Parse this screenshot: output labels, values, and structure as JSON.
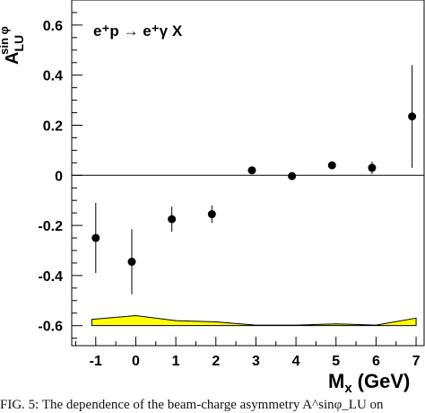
{
  "chart_data": {
    "type": "scatter",
    "ylabel_main": "A",
    "ylabel_sup": "sin φ",
    "ylabel_sub": "LU",
    "annotation": "e⁺p → e⁺γ X",
    "xlabel": "M",
    "xlabel_sub": "x",
    "xlabel_unit": "(GeV)",
    "xlim": [
      -1.6,
      7.2
    ],
    "ylim": [
      -0.68,
      0.7
    ],
    "x_ticks": [
      -1,
      0,
      1,
      2,
      3,
      4,
      5,
      6,
      7
    ],
    "y_ticks": [
      -0.6,
      -0.4,
      -0.2,
      0,
      0.2,
      0.4,
      0.6
    ],
    "y_tick_labels": [
      "-0.6",
      "-0.4",
      "-0.2",
      "0",
      "0.2",
      "0.4",
      "0.6"
    ],
    "zero_line": true,
    "series": [
      {
        "points": [
          {
            "x": -1.0,
            "y": -0.25,
            "yerr": 0.14
          },
          {
            "x": -0.1,
            "y": -0.345,
            "yerr": 0.13
          },
          {
            "x": 0.9,
            "y": -0.175,
            "yerr": 0.05
          },
          {
            "x": 1.9,
            "y": -0.155,
            "yerr": 0.035
          },
          {
            "x": 2.9,
            "y": 0.02,
            "yerr": 0.012
          },
          {
            "x": 3.9,
            "y": -0.003,
            "yerr": 0.01
          },
          {
            "x": 4.9,
            "y": 0.04,
            "yerr": 0.012
          },
          {
            "x": 5.9,
            "y": 0.03,
            "yerr": 0.025
          },
          {
            "x": 6.9,
            "y": 0.235,
            "yerr": 0.205
          }
        ]
      }
    ],
    "systematic_band": {
      "baseline": -0.6,
      "color": "#ffff00",
      "x": [
        -1.1,
        0.0,
        1.0,
        2.0,
        3.0,
        4.0,
        5.0,
        6.0,
        7.0
      ],
      "y_upper": [
        -0.575,
        -0.56,
        -0.58,
        -0.585,
        -0.598,
        -0.598,
        -0.593,
        -0.598,
        -0.57
      ]
    }
  },
  "caption": "FIG. 5: The dependence of the beam-charge asymmetry A^sinφ_LU on"
}
